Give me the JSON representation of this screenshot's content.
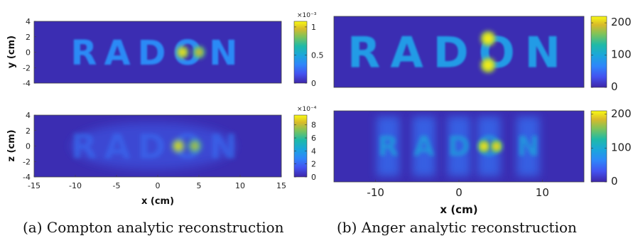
{
  "chart_data": [
    {
      "type": "heatmap",
      "panel": "a-top",
      "word": "RADON",
      "ylabel": "y (cm)",
      "xlim": [
        -15,
        15
      ],
      "ylim": [
        -4,
        4
      ],
      "xticks": [],
      "yticks": [
        -4,
        -2,
        0,
        2,
        4
      ],
      "colorbar": {
        "min": 0,
        "max": 1.1,
        "ticks": [
          0,
          0.5,
          1
        ],
        "tick_labels": [
          "0",
          "0.5",
          "1"
        ],
        "exponent": "×10⁻³"
      },
      "hotspots": [
        {
          "x": 3,
          "y": 0,
          "value": 1.05
        },
        {
          "x": 5,
          "y": 0,
          "value": 0.95
        }
      ]
    },
    {
      "type": "heatmap",
      "panel": "a-bottom",
      "word": "RADON",
      "xlabel": "x (cm)",
      "ylabel": "z (cm)",
      "xlim": [
        -15,
        15
      ],
      "ylim": [
        -4,
        4
      ],
      "xticks": [
        -15,
        -10,
        -5,
        0,
        5,
        10,
        15
      ],
      "yticks": [
        -4,
        -2,
        0,
        2,
        4
      ],
      "colorbar": {
        "min": 0,
        "max": 9.5,
        "ticks": [
          0,
          2,
          4,
          6,
          8
        ],
        "tick_labels": [
          "0",
          "2",
          "4",
          "6",
          "8"
        ],
        "exponent": "×10⁻⁴"
      },
      "hotspots": [
        {
          "x": 2.5,
          "y": 0,
          "value": 9
        },
        {
          "x": 4.5,
          "y": 0,
          "value": 8
        }
      ]
    },
    {
      "type": "heatmap",
      "panel": "b-top",
      "word": "RADON",
      "xlim": [
        -15,
        15
      ],
      "ylim": [
        -4,
        4
      ],
      "xticks": [],
      "yticks": [],
      "colorbar": {
        "min": 0,
        "max": 220,
        "ticks": [
          0,
          100,
          200
        ],
        "tick_labels": [
          "0",
          "100",
          "200"
        ]
      },
      "hotspots": [
        {
          "x": 3.5,
          "y": 1.5,
          "value": 215
        },
        {
          "x": 3.5,
          "y": -1.5,
          "value": 215
        }
      ]
    },
    {
      "type": "heatmap",
      "panel": "b-bottom",
      "word": "RADON",
      "xlabel": "x (cm)",
      "xlim": [
        -15,
        15
      ],
      "ylim": [
        -4,
        4
      ],
      "xticks": [
        -10,
        0,
        10
      ],
      "yticks": [],
      "colorbar": {
        "min": 0,
        "max": 210,
        "ticks": [
          0,
          100,
          200
        ],
        "tick_labels": [
          "0",
          "100",
          "200"
        ]
      },
      "hotspots": [
        {
          "x": 3,
          "y": 0,
          "value": 200
        },
        {
          "x": 4.5,
          "y": 0,
          "value": 195
        }
      ]
    }
  ],
  "captions": {
    "a": "(a) Compton analytic reconstruction",
    "b": "(b) Anger analytic reconstruction"
  }
}
